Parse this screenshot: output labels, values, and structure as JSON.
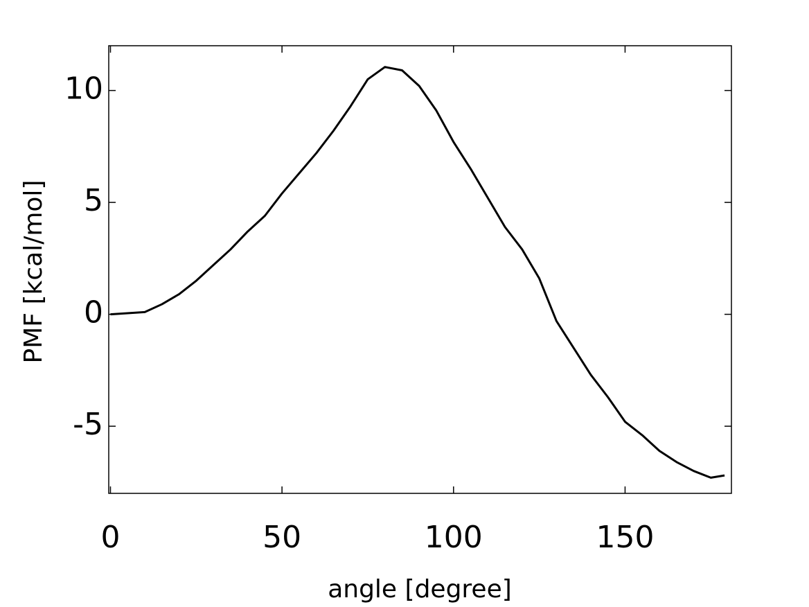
{
  "chart_data": {
    "type": "line",
    "x_label": "angle [degree]",
    "y_label": "PMF [kcal/mol]",
    "x": [
      0,
      5,
      10,
      15,
      20,
      25,
      30,
      35,
      40,
      45,
      50,
      55,
      60,
      65,
      70,
      75,
      80,
      85,
      90,
      95,
      100,
      105,
      110,
      115,
      120,
      125,
      130,
      135,
      140,
      145,
      150,
      155,
      160,
      165,
      170,
      175,
      179
    ],
    "series": [
      {
        "name": "PMF",
        "color": "#000000",
        "values": [
          0.0,
          0.05,
          0.1,
          0.45,
          0.9,
          1.5,
          2.2,
          2.9,
          3.7,
          4.4,
          5.4,
          6.3,
          7.2,
          8.2,
          9.3,
          10.5,
          11.05,
          10.9,
          10.2,
          9.1,
          7.7,
          6.5,
          5.2,
          3.9,
          2.9,
          1.6,
          -0.3,
          -1.5,
          -2.7,
          -3.7,
          -4.8,
          -5.4,
          -6.1,
          -6.6,
          -7.0,
          -7.3,
          -7.2
        ]
      }
    ],
    "xlim": [
      -0.5,
      181
    ],
    "ylim": [
      -8,
      12
    ],
    "xticks": [
      0,
      50,
      100,
      150
    ],
    "yticks": [
      -5,
      0,
      5,
      10
    ],
    "grid": false
  }
}
